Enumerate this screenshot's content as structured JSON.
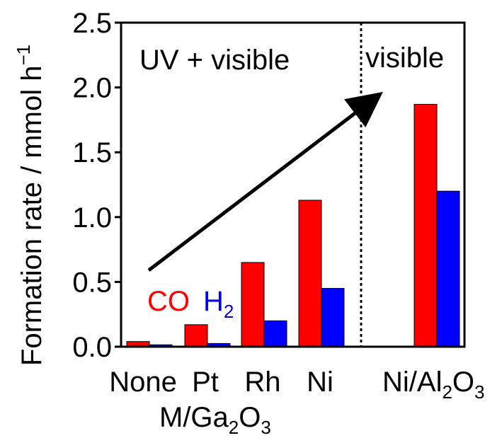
{
  "chart_data": {
    "type": "bar",
    "ylabel": "Formation rate / mmol h",
    "ylabel_sup": "−1",
    "ylim": [
      0,
      2.5
    ],
    "yticks": [
      "0.0",
      "0.5",
      "1.0",
      "1.5",
      "2.0",
      "2.5"
    ],
    "categories": [
      {
        "base": "None"
      },
      {
        "base": "Pt"
      },
      {
        "base": "Rh"
      },
      {
        "base": "Ni"
      },
      {
        "base": "Ni/Al",
        "sub1": "2",
        "mid": "O",
        "sub2": "3"
      }
    ],
    "series": [
      {
        "name": "CO",
        "color": "#ff0000",
        "values": [
          0.04,
          0.17,
          0.65,
          1.13,
          1.87
        ]
      },
      {
        "name": "H",
        "name_sub": "2",
        "color": "#0000ff",
        "values": [
          0.015,
          0.025,
          0.2,
          0.45,
          1.2
        ]
      }
    ],
    "group_label": {
      "base": "M/Ga",
      "sub1": "2",
      "mid": "O",
      "sub2": "3"
    },
    "region_labels": [
      "UV + visible",
      "visible"
    ],
    "annotations": [
      "increasing-trend-arrow"
    ]
  }
}
